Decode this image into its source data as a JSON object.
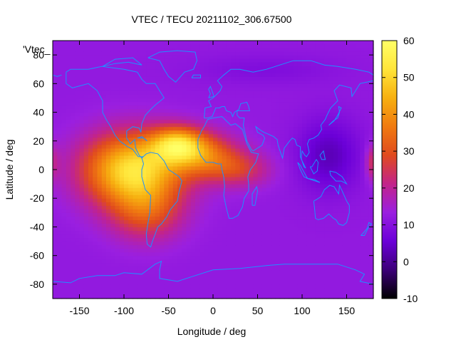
{
  "chart_data": {
    "type": "heatmap",
    "title": "VTEC / TECU 20211102_306.67500",
    "xlabel": "Longitude / deg",
    "ylabel": "Latitude / deg",
    "key_title": "'Vtec_",
    "xlim": [
      -180,
      180
    ],
    "ylim": [
      -90,
      90
    ],
    "xticks": [
      "-150",
      "-100",
      "-50",
      "0",
      "50",
      "100",
      "150"
    ],
    "yticks": [
      "-80",
      "-60",
      "-40",
      "-20",
      "0",
      "20",
      "40",
      "60",
      "80"
    ],
    "colorbar": {
      "range": [
        -10,
        60
      ],
      "ticks": [
        "-10",
        "0",
        "10",
        "20",
        "30",
        "40",
        "50",
        "60"
      ],
      "palette": [
        "#000000",
        "#3c0078",
        "#6b00d8",
        "#9a1fe0",
        "#c2248a",
        "#e04a1e",
        "#f07a10",
        "#f7b010",
        "#ffe53a",
        "#ffff66"
      ]
    },
    "overlay": "coastlines",
    "overlay_color": "#1e90ff",
    "field": {
      "background_vtec": 12,
      "features": [
        {
          "lon": -90,
          "lat": 0,
          "amp": 40,
          "sx": 55,
          "sy": 25
        },
        {
          "lon": -40,
          "lat": 18,
          "amp": 28,
          "sx": 30,
          "sy": 12
        },
        {
          "lon": -10,
          "lat": 10,
          "amp": 20,
          "sx": 40,
          "sy": 15
        },
        {
          "lon": 30,
          "lat": 0,
          "amp": 12,
          "sx": 35,
          "sy": 12
        },
        {
          "lon": -75,
          "lat": -30,
          "amp": 15,
          "sx": 40,
          "sy": 20
        },
        {
          "lon": 130,
          "lat": 10,
          "amp": -9,
          "sx": 35,
          "sy": 25
        },
        {
          "lon": 180,
          "lat": 5,
          "amp": 14,
          "sx": 8,
          "sy": 12
        },
        {
          "lon": -180,
          "lat": 5,
          "amp": 6,
          "sx": 8,
          "sy": 12
        },
        {
          "lon": 60,
          "lat": 70,
          "amp": -3,
          "sx": 80,
          "sy": 10
        }
      ]
    }
  }
}
